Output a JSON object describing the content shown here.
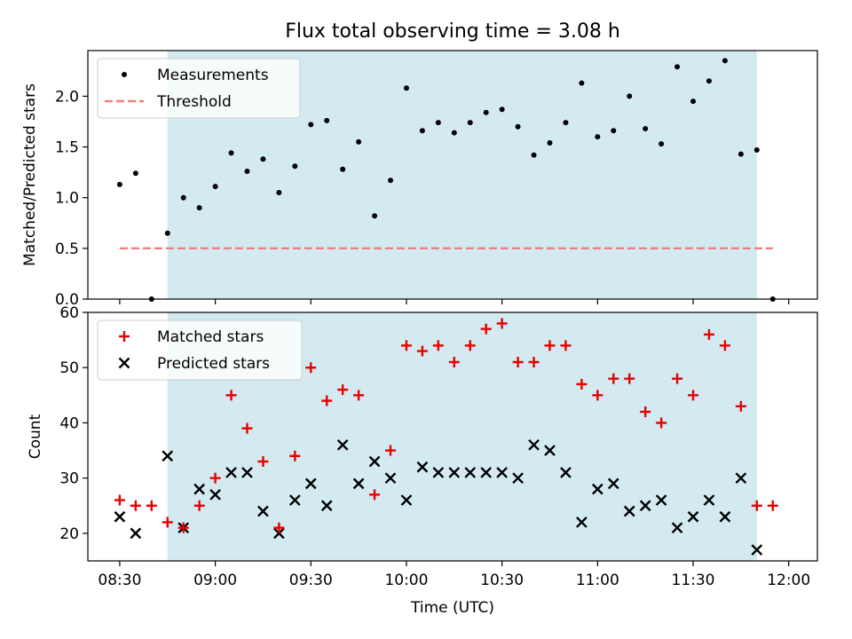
{
  "title": "Flux total observing time = 3.08 h",
  "colors": {
    "shade": "#d3eaf0",
    "measurement": "#000000",
    "threshold": "#f08080",
    "matched": "#e60000",
    "predicted": "#000000"
  },
  "chart_data": [
    {
      "type": "scatter",
      "title": "Flux total observing time = 3.08 h",
      "xlabel": "",
      "ylabel": "Matched/Predicted stars",
      "xlim": [
        "08:20",
        "12:09"
      ],
      "ylim": [
        0,
        2.45
      ],
      "yticks": [
        0.0,
        0.5,
        1.0,
        1.5,
        2.0
      ],
      "ytick_labels": [
        "0.0",
        "0.5",
        "1.0",
        "1.5",
        "2.0"
      ],
      "shaded_interval": [
        "08:45",
        "11:50"
      ],
      "legend": {
        "placement": "top-left",
        "entries": [
          "Measurements",
          "Threshold"
        ]
      },
      "threshold": {
        "name": "Threshold",
        "value": 0.5,
        "x_range": [
          "08:30",
          "11:55"
        ]
      },
      "series": [
        {
          "name": "Measurements",
          "x": [
            "08:30",
            "08:35",
            "08:40",
            "08:45",
            "08:50",
            "08:55",
            "09:00",
            "09:05",
            "09:10",
            "09:15",
            "09:20",
            "09:25",
            "09:30",
            "09:35",
            "09:40",
            "09:45",
            "09:50",
            "09:55",
            "10:00",
            "10:05",
            "10:10",
            "10:15",
            "10:20",
            "10:25",
            "10:30",
            "10:35",
            "10:40",
            "10:45",
            "10:50",
            "10:55",
            "11:00",
            "11:05",
            "11:10",
            "11:15",
            "11:20",
            "11:25",
            "11:30",
            "11:35",
            "11:40",
            "11:45",
            "11:50",
            "11:55"
          ],
          "y": [
            1.13,
            1.24,
            0.0,
            0.65,
            1.0,
            0.9,
            1.11,
            1.44,
            1.26,
            1.38,
            1.05,
            1.31,
            1.72,
            1.76,
            1.28,
            1.55,
            0.82,
            1.17,
            2.08,
            1.66,
            1.74,
            1.64,
            1.74,
            1.84,
            1.87,
            1.7,
            1.42,
            1.54,
            1.74,
            2.13,
            1.6,
            1.66,
            2.0,
            1.68,
            1.53,
            2.29,
            1.95,
            2.15,
            2.35,
            1.43,
            1.47,
            0.0
          ]
        }
      ]
    },
    {
      "type": "scatter",
      "xlabel": "Time (UTC)",
      "ylabel": "Count",
      "xlim": [
        "08:20",
        "12:09"
      ],
      "ylim": [
        15,
        60
      ],
      "yticks": [
        20,
        30,
        40,
        50,
        60
      ],
      "ytick_labels": [
        "20",
        "30",
        "40",
        "50",
        "60"
      ],
      "xticks": [
        "08:30",
        "09:00",
        "09:30",
        "10:00",
        "10:30",
        "11:00",
        "11:30",
        "12:00"
      ],
      "shaded_interval": [
        "08:45",
        "11:50"
      ],
      "legend": {
        "placement": "top-left",
        "entries": [
          "Matched stars",
          "Predicted stars"
        ]
      },
      "series": [
        {
          "name": "Matched stars",
          "x": [
            "08:30",
            "08:35",
            "08:40",
            "08:45",
            "08:50",
            "08:55",
            "09:00",
            "09:05",
            "09:10",
            "09:15",
            "09:20",
            "09:25",
            "09:30",
            "09:35",
            "09:40",
            "09:45",
            "09:50",
            "09:55",
            "10:00",
            "10:05",
            "10:10",
            "10:15",
            "10:20",
            "10:25",
            "10:30",
            "10:35",
            "10:40",
            "10:45",
            "10:50",
            "10:55",
            "11:00",
            "11:05",
            "11:10",
            "11:15",
            "11:20",
            "11:25",
            "11:30",
            "11:35",
            "11:40",
            "11:45",
            "11:50",
            "11:55"
          ],
          "y": [
            26,
            25,
            25,
            22,
            21,
            25,
            30,
            45,
            39,
            33,
            21,
            34,
            50,
            44,
            46,
            45,
            27,
            35,
            54,
            53,
            54,
            51,
            54,
            57,
            58,
            51,
            51,
            54,
            54,
            47,
            45,
            48,
            48,
            42,
            40,
            48,
            45,
            56,
            54,
            43,
            25,
            25
          ]
        },
        {
          "name": "Predicted stars",
          "x": [
            "08:30",
            "08:35",
            "08:45",
            "08:50",
            "08:55",
            "09:00",
            "09:05",
            "09:10",
            "09:15",
            "09:20",
            "09:25",
            "09:30",
            "09:35",
            "09:40",
            "09:45",
            "09:50",
            "09:55",
            "10:00",
            "10:05",
            "10:10",
            "10:15",
            "10:20",
            "10:25",
            "10:30",
            "10:35",
            "10:40",
            "10:45",
            "10:50",
            "10:55",
            "11:00",
            "11:05",
            "11:10",
            "11:15",
            "11:20",
            "11:25",
            "11:30",
            "11:35",
            "11:40",
            "11:45",
            "11:50"
          ],
          "y": [
            23,
            20,
            34,
            21,
            28,
            27,
            31,
            31,
            24,
            20,
            26,
            29,
            25,
            36,
            29,
            33,
            30,
            26,
            32,
            31,
            31,
            31,
            31,
            31,
            30,
            36,
            35,
            31,
            22,
            28,
            29,
            24,
            25,
            26,
            21,
            23,
            26,
            23,
            30,
            17
          ]
        }
      ]
    }
  ]
}
